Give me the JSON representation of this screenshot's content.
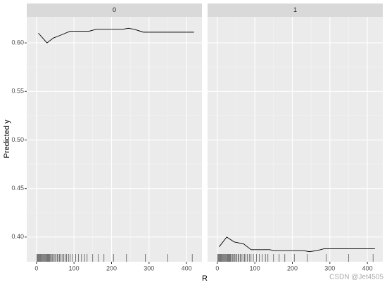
{
  "chart_data": {
    "type": "line",
    "x_label": "R",
    "y_label": "Predicted y",
    "xlim": [
      -26,
      441
    ],
    "ylim": [
      0.3746,
      0.6268
    ],
    "xticks": [
      0,
      100,
      200,
      300,
      400
    ],
    "yticks": [
      {
        "value": 0.4,
        "label": "0.40"
      },
      {
        "value": 0.45,
        "label": "0.45"
      },
      {
        "value": 0.5,
        "label": "0.50"
      },
      {
        "value": 0.55,
        "label": "0.55"
      },
      {
        "value": 0.6,
        "label": "0.60"
      }
    ],
    "grid": true,
    "color": "#000000",
    "series": [
      {
        "name": "0",
        "x": [
          5,
          28,
          45,
          65,
          90,
          140,
          160,
          230,
          245,
          260,
          285,
          420
        ],
        "values": [
          0.61,
          0.6,
          0.605,
          0.608,
          0.612,
          0.612,
          0.614,
          0.614,
          0.615,
          0.614,
          0.611,
          0.611
        ]
      },
      {
        "name": "1",
        "x": [
          5,
          25,
          45,
          70,
          90,
          140,
          150,
          230,
          245,
          265,
          285,
          420
        ],
        "values": [
          0.39,
          0.4,
          0.395,
          0.393,
          0.387,
          0.387,
          0.386,
          0.386,
          0.385,
          0.386,
          0.388,
          0.388
        ]
      }
    ],
    "rug": [
      1,
      3,
      5,
      7,
      9,
      11,
      13,
      15,
      17,
      19,
      21,
      23,
      25,
      27,
      29,
      31,
      33,
      35,
      37,
      40,
      43,
      46,
      49,
      52,
      55,
      58,
      61,
      64,
      68,
      72,
      76,
      80,
      85,
      90,
      96,
      104,
      112,
      120,
      128,
      135,
      150,
      165,
      180,
      205,
      240,
      290,
      350,
      415
    ],
    "watermark": "CSDN @Jet4505"
  }
}
